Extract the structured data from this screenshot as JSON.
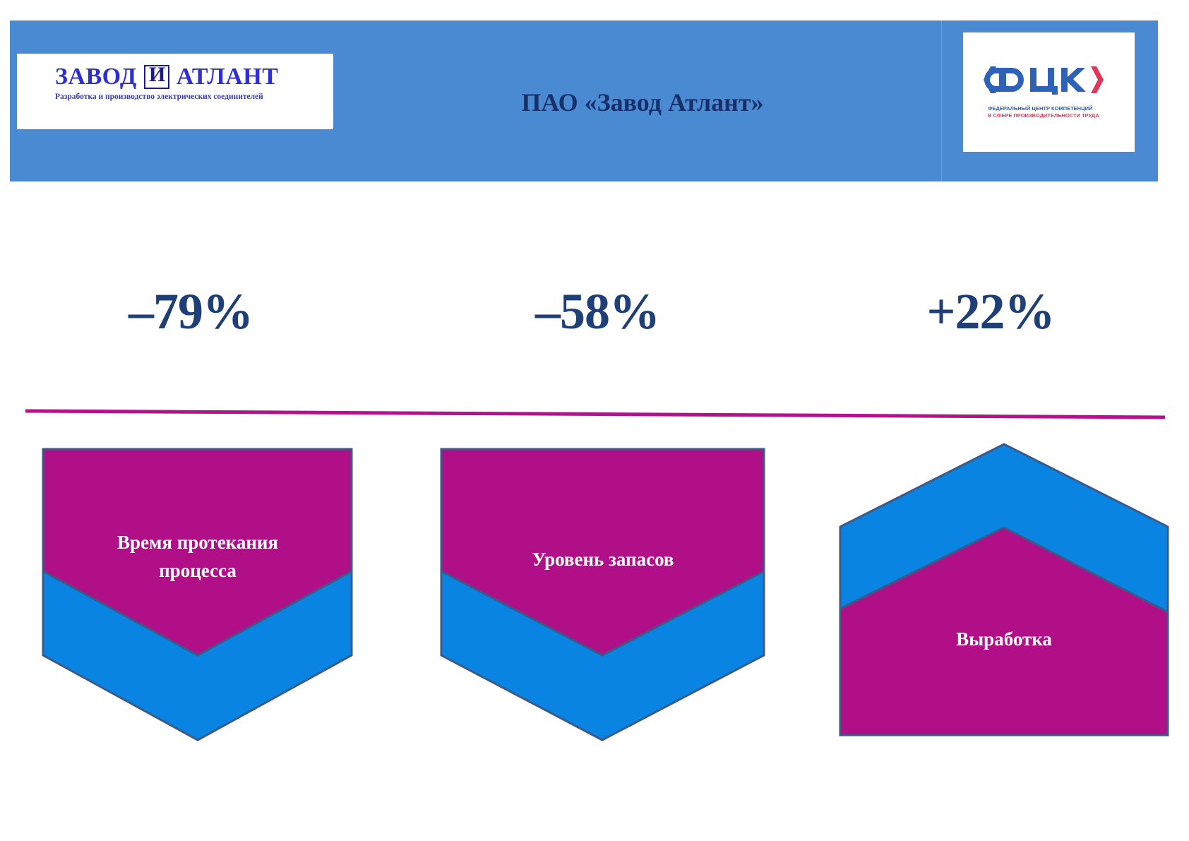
{
  "header": {
    "company_logo": {
      "brand_name": "ЗАВОД И АТЛАНТ",
      "brand_left": "ЗАВОД",
      "brand_right": "АТЛАНТ",
      "tagline": "Разработка и производство электрических соединителей"
    },
    "title": "ПАО «Завод Атлант»",
    "partner_logo": {
      "abbr": "ФЦК",
      "line1": "ФЕДЕРАЛЬНЫЙ ЦЕНТР КОМПЕТЕНЦИЙ",
      "line2": "В СФЕРЕ ПРОИЗВОДИТЕЛЬНОСТИ ТРУДА"
    },
    "colors": {
      "band": "#4a8ad2",
      "title": "#17306a"
    }
  },
  "metrics": [
    {
      "value": "–79%",
      "label_lines": [
        "Время протекания",
        "процесса"
      ],
      "direction": "down"
    },
    {
      "value": "–58%",
      "label_lines": [
        "Уровень запасов"
      ],
      "direction": "down"
    },
    {
      "value": "+22%",
      "label_lines": [
        "Выработка"
      ],
      "direction": "up"
    }
  ],
  "colors": {
    "magenta": "#b10f88",
    "blue": "#0a84e3",
    "outline": "#3a5a8a",
    "divider": "#b0138a",
    "stat": "#1f3f78"
  }
}
